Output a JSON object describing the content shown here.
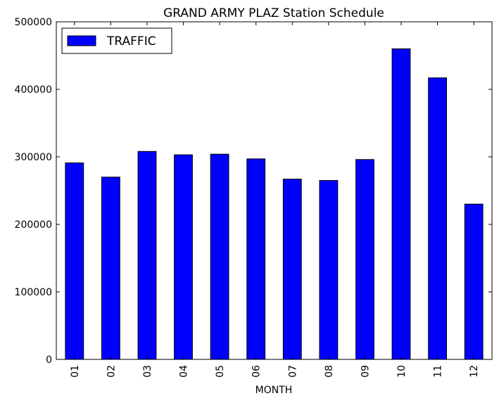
{
  "chart_data": {
    "type": "bar",
    "title": "GRAND ARMY PLAZ Station Schedule",
    "xlabel": "MONTH",
    "ylabel": "",
    "categories": [
      "01",
      "02",
      "03",
      "04",
      "05",
      "06",
      "07",
      "08",
      "09",
      "10",
      "11",
      "12"
    ],
    "series": [
      {
        "name": "TRAFFIC",
        "color": "#0000ff",
        "values": [
          291000,
          270000,
          308000,
          303000,
          304000,
          297000,
          267000,
          265000,
          296000,
          460000,
          417000,
          230000
        ]
      }
    ],
    "ylim": [
      0,
      500000
    ],
    "yticks": [
      "0",
      "100000",
      "200000",
      "300000",
      "400000",
      "500000"
    ],
    "grid": false,
    "legend": "top-left"
  }
}
